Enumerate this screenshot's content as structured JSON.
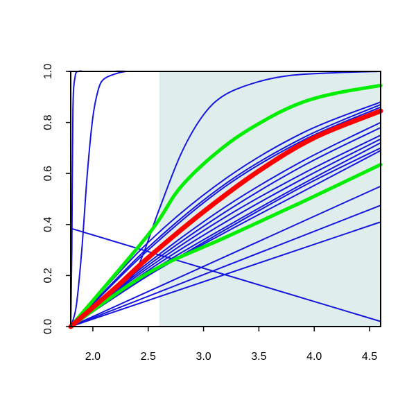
{
  "chart_data": {
    "type": "line",
    "title": "",
    "xlabel": "",
    "ylabel": "",
    "xlim": [
      1.8,
      4.6
    ],
    "ylim": [
      0.0,
      1.0
    ],
    "grid": false,
    "legend": "none",
    "shaded_region": {
      "x_from": 2.6,
      "x_to": 4.6,
      "color": "#e0eded"
    },
    "x_ticks": [
      {
        "value": 2.0,
        "label": "2.0"
      },
      {
        "value": 2.5,
        "label": "2.5"
      },
      {
        "value": 3.0,
        "label": "3.0"
      },
      {
        "value": 3.5,
        "label": "3.5"
      },
      {
        "value": 4.0,
        "label": "4.0"
      },
      {
        "value": 4.5,
        "label": "4.5"
      }
    ],
    "y_ticks": [
      {
        "value": 0.0,
        "label": "0.0"
      },
      {
        "value": 0.2,
        "label": "0.2"
      },
      {
        "value": 0.4,
        "label": "0.4"
      },
      {
        "value": 0.6,
        "label": "0.6"
      },
      {
        "value": 0.8,
        "label": "0.8"
      },
      {
        "value": 1.0,
        "label": "1.0"
      }
    ],
    "colors": {
      "blue": "#1515e0",
      "red": "#ff0000",
      "green": "#00ee00",
      "axis": "#000000"
    },
    "series": [
      {
        "color": "blue",
        "width": 2,
        "x": [
          1.8,
          1.81,
          1.82,
          1.84,
          1.87,
          1.92,
          2.0,
          4.6
        ],
        "y": [
          0.0,
          0.3,
          0.85,
          0.98,
          1.0,
          1.0,
          1.0,
          1.0
        ]
      },
      {
        "color": "blue",
        "width": 2,
        "x": [
          1.8,
          1.85,
          1.9,
          1.95,
          2.0,
          2.05,
          2.1,
          2.2,
          2.3,
          2.4,
          4.6
        ],
        "y": [
          0.0,
          0.08,
          0.3,
          0.6,
          0.82,
          0.93,
          0.97,
          0.99,
          1.0,
          1.0,
          1.0
        ]
      },
      {
        "color": "blue",
        "width": 2,
        "x": [
          1.8,
          2.2,
          2.4,
          2.6,
          2.8,
          3.0,
          3.2,
          3.5,
          3.8,
          4.2,
          4.6
        ],
        "y": [
          0.0,
          0.13,
          0.23,
          0.46,
          0.68,
          0.83,
          0.91,
          0.96,
          0.985,
          0.995,
          1.0
        ]
      },
      {
        "color": "blue",
        "width": 2,
        "x": [
          1.8,
          4.6
        ],
        "y": [
          0.385,
          0.02
        ]
      },
      {
        "color": "blue",
        "width": 2,
        "x": [
          1.8,
          4.6
        ],
        "y": [
          0.0,
          0.41
        ]
      },
      {
        "color": "blue",
        "width": 2,
        "x": [
          1.8,
          4.6
        ],
        "y": [
          0.0,
          0.475
        ]
      },
      {
        "color": "blue",
        "width": 2,
        "x": [
          1.8,
          4.6
        ],
        "y": [
          0.0,
          0.55
        ]
      },
      {
        "color": "blue",
        "width": 2,
        "x": [
          1.8,
          2.5,
          3.2,
          3.9,
          4.6
        ],
        "y": [
          0.0,
          0.2,
          0.37,
          0.53,
          0.69
        ]
      },
      {
        "color": "blue",
        "width": 2,
        "x": [
          1.8,
          2.5,
          3.2,
          3.9,
          4.6
        ],
        "y": [
          0.0,
          0.2,
          0.38,
          0.55,
          0.7
        ]
      },
      {
        "color": "blue",
        "width": 2,
        "x": [
          1.8,
          2.5,
          3.2,
          3.9,
          4.6
        ],
        "y": [
          0.0,
          0.21,
          0.39,
          0.56,
          0.72
        ]
      },
      {
        "color": "blue",
        "width": 2,
        "x": [
          1.8,
          2.5,
          3.2,
          3.9,
          4.6
        ],
        "y": [
          0.0,
          0.22,
          0.41,
          0.58,
          0.735
        ]
      },
      {
        "color": "blue",
        "width": 2,
        "x": [
          1.8,
          2.5,
          3.2,
          3.9,
          4.6
        ],
        "y": [
          0.0,
          0.23,
          0.43,
          0.6,
          0.75
        ]
      },
      {
        "color": "blue",
        "width": 2,
        "x": [
          1.8,
          2.5,
          3.2,
          3.9,
          4.6
        ],
        "y": [
          0.0,
          0.24,
          0.45,
          0.63,
          0.78
        ]
      },
      {
        "color": "blue",
        "width": 2,
        "x": [
          1.8,
          2.5,
          3.2,
          3.9,
          4.6
        ],
        "y": [
          0.0,
          0.25,
          0.47,
          0.65,
          0.8
        ]
      },
      {
        "color": "blue",
        "width": 2,
        "x": [
          1.8,
          2.5,
          3.2,
          3.9,
          4.6
        ],
        "y": [
          0.0,
          0.3,
          0.55,
          0.73,
          0.86
        ]
      },
      {
        "color": "blue",
        "width": 2,
        "x": [
          1.8,
          2.5,
          3.2,
          3.9,
          4.6
        ],
        "y": [
          0.0,
          0.31,
          0.56,
          0.74,
          0.87
        ]
      },
      {
        "color": "blue",
        "width": 2,
        "x": [
          1.8,
          2.5,
          3.2,
          3.9,
          4.6
        ],
        "y": [
          0.0,
          0.33,
          0.58,
          0.76,
          0.88
        ]
      },
      {
        "color": "green",
        "width": 5,
        "x": [
          1.8,
          2.5,
          3.2,
          3.9,
          4.6
        ],
        "y": [
          0.0,
          0.21,
          0.35,
          0.49,
          0.635
        ]
      },
      {
        "color": "green",
        "width": 5,
        "x": [
          1.8,
          2.5,
          2.8,
          3.2,
          3.6,
          3.9,
          4.2,
          4.6
        ],
        "y": [
          0.0,
          0.36,
          0.55,
          0.71,
          0.82,
          0.88,
          0.915,
          0.945
        ]
      },
      {
        "color": "red",
        "width": 7,
        "x": [
          1.8,
          2.2,
          2.5,
          3.0,
          3.5,
          4.0,
          4.6
        ],
        "y": [
          0.0,
          0.15,
          0.27,
          0.45,
          0.61,
          0.74,
          0.845
        ]
      }
    ]
  }
}
